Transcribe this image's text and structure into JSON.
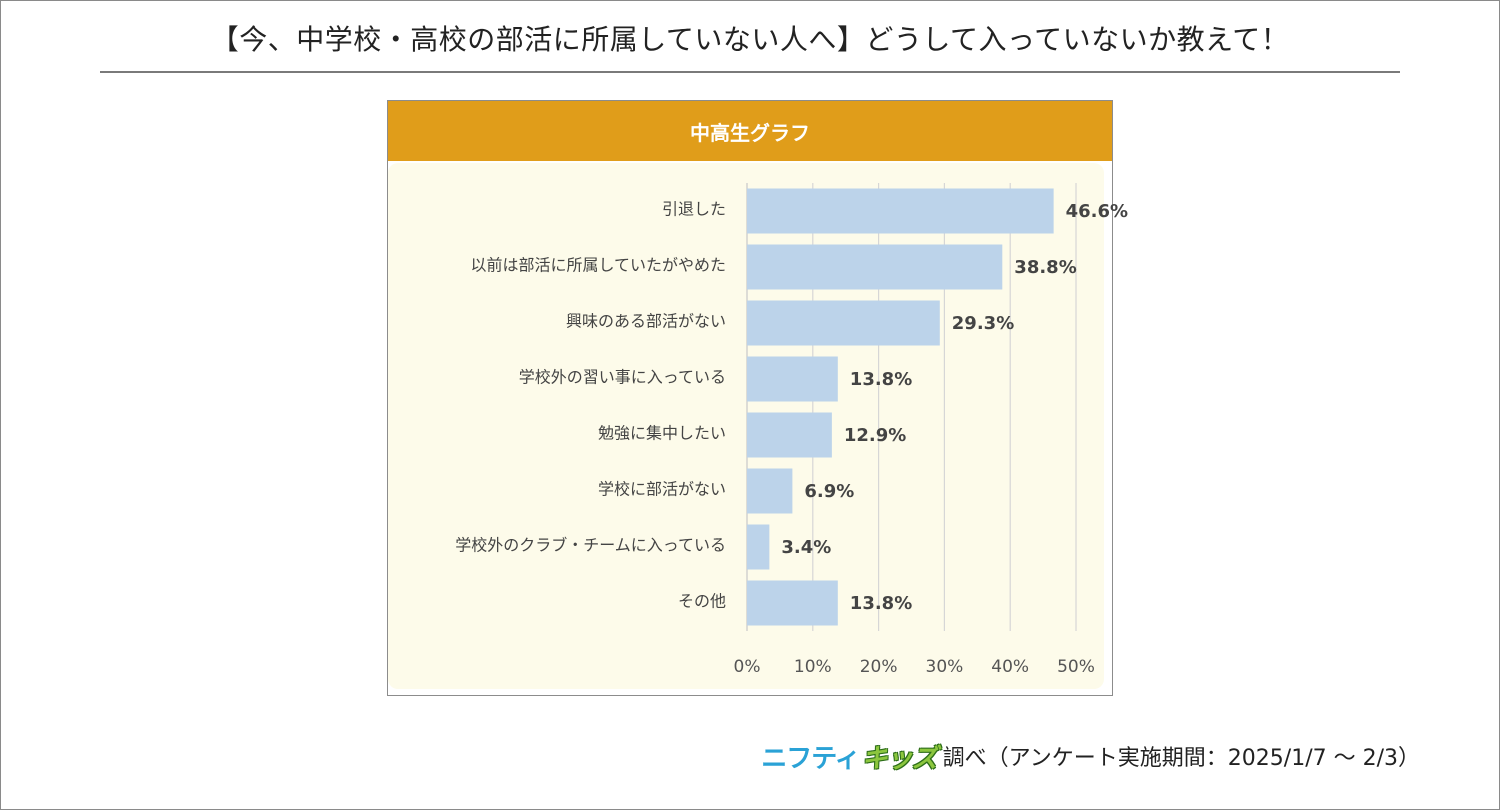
{
  "page": {
    "title": "【今、中学校・高校の部活に所属していない人へ】どうして入っていないか教えて！"
  },
  "footer": {
    "brand_part1": "ニフティ",
    "brand_part2": "キッズ",
    "note": "調べ（アンケート実施期間：2025/1/7 ～ 2/3）"
  },
  "colors": {
    "header": "#e09d1a",
    "bar": "#bcd3ea",
    "plot_background": "#fdfbea",
    "brand_blue": "#2aa2d6",
    "brand_green": "#8cc63e"
  },
  "chart_data": {
    "type": "bar",
    "orientation": "horizontal",
    "title": "中高生グラフ",
    "categories": [
      "引退した",
      "以前は部活に所属していたがやめた",
      "興味のある部活がない",
      "学校外の習い事に入っている",
      "勉強に集中したい",
      "学校に部活がない",
      "学校外のクラブ・チームに入っている",
      "その他"
    ],
    "values": [
      46.6,
      38.8,
      29.3,
      13.8,
      12.9,
      6.9,
      3.4,
      13.8
    ],
    "value_labels": [
      "46.6%",
      "38.8%",
      "29.3%",
      "13.8%",
      "12.9%",
      "6.9%",
      "3.4%",
      "13.8%"
    ],
    "xlim": [
      0,
      50
    ],
    "x_ticks": [
      0,
      10,
      20,
      30,
      40,
      50
    ],
    "x_tick_labels": [
      "0%",
      "10%",
      "20%",
      "30%",
      "40%",
      "50%"
    ],
    "grid": true,
    "legend": "none"
  }
}
